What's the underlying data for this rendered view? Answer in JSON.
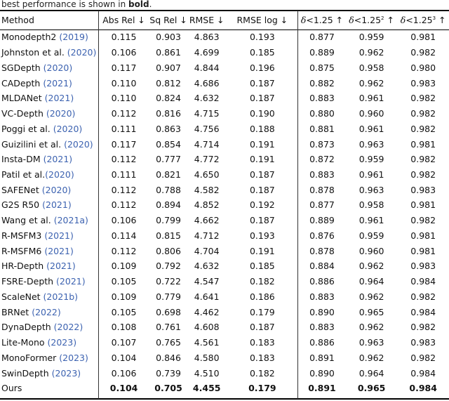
{
  "caption": {
    "text": "best performance is shown in ",
    "bold": "bold",
    "end": "."
  },
  "header": {
    "method": "Method",
    "cols": [
      "Abs Rel ↓",
      "Sq Rel ↓",
      "RMSE ↓",
      "RMSE log ↓"
    ],
    "delta": [
      {
        "base": "<1.25",
        "sup": "",
        "arrow": " ↑"
      },
      {
        "base": "<1.25",
        "sup": "2",
        "arrow": " ↑"
      },
      {
        "base": "<1.25",
        "sup": "3",
        "arrow": " ↑"
      }
    ],
    "delta_symbol": "δ"
  },
  "rows": [
    {
      "name": "Monodepth2 ",
      "year": "(2019)",
      "v": [
        "0.115",
        "0.903",
        "4.863",
        "0.193",
        "0.877",
        "0.959",
        "0.981"
      ]
    },
    {
      "name": "Johnston et al. ",
      "year": "(2020)",
      "v": [
        "0.106",
        "0.861",
        "4.699",
        "0.185",
        "0.889",
        "0.962",
        "0.982"
      ]
    },
    {
      "name": "SGDepth ",
      "year": "(2020)",
      "v": [
        "0.117",
        "0.907",
        "4.844",
        "0.196",
        "0.875",
        "0.958",
        "0.980"
      ]
    },
    {
      "name": "CADepth ",
      "year": "(2021)",
      "v": [
        "0.110",
        "0.812",
        "4.686",
        "0.187",
        "0.882",
        "0.962",
        "0.983"
      ]
    },
    {
      "name": "MLDANet ",
      "year": "(2021)",
      "v": [
        "0.110",
        "0.824",
        "4.632",
        "0.187",
        "0.883",
        "0.961",
        "0.982"
      ]
    },
    {
      "name": "VC-Depth ",
      "year": "(2020)",
      "v": [
        "0.112",
        "0.816",
        "4.715",
        "0.190",
        "0.880",
        "0.960",
        "0.982"
      ]
    },
    {
      "name": "Poggi et al. ",
      "year": "(2020)",
      "v": [
        "0.111",
        "0.863",
        "4.756",
        "0.188",
        "0.881",
        "0.961",
        "0.982"
      ]
    },
    {
      "name": "Guizilini et al. ",
      "year": "(2020)",
      "v": [
        "0.117",
        "0.854",
        "4.714",
        "0.191",
        "0.873",
        "0.963",
        "0.981"
      ]
    },
    {
      "name": "Insta-DM ",
      "year": "(2021)",
      "v": [
        "0.112",
        "0.777",
        "4.772",
        "0.191",
        "0.872",
        "0.959",
        "0.982"
      ]
    },
    {
      "name": "Patil et al.",
      "year": "(2020)",
      "v": [
        "0.111",
        "0.821",
        "4.650",
        "0.187",
        "0.883",
        "0.961",
        "0.982"
      ]
    },
    {
      "name": "SAFENet ",
      "year": "(2020)",
      "v": [
        "0.112",
        "0.788",
        "4.582",
        "0.187",
        "0.878",
        "0.963",
        "0.983"
      ]
    },
    {
      "name": "G2S R50 ",
      "year": "(2021)",
      "v": [
        "0.112",
        "0.894",
        "4.852",
        "0.192",
        "0.877",
        "0.958",
        "0.981"
      ]
    },
    {
      "name": "Wang et al. ",
      "year": "(2021a)",
      "v": [
        "0.106",
        "0.799",
        "4.662",
        "0.187",
        "0.889",
        "0.961",
        "0.982"
      ]
    },
    {
      "name": "R-MSFM3 ",
      "year": "(2021)",
      "v": [
        "0.114",
        "0.815",
        "4.712",
        "0.193",
        "0.876",
        "0.959",
        "0.981"
      ]
    },
    {
      "name": "R-MSFM6 ",
      "year": "(2021)",
      "v": [
        "0.112",
        "0.806",
        "4.704",
        "0.191",
        "0.878",
        "0.960",
        "0.981"
      ]
    },
    {
      "name": "HR-Depth ",
      "year": "(2021)",
      "v": [
        "0.109",
        "0.792",
        "4.632",
        "0.185",
        "0.884",
        "0.962",
        "0.983"
      ]
    },
    {
      "name": "FSRE-Depth ",
      "year": "(2021)",
      "v": [
        "0.105",
        "0.722",
        "4.547",
        "0.182",
        "0.886",
        "0.964",
        "0.984"
      ]
    },
    {
      "name": "ScaleNet ",
      "year": "(2021b)",
      "v": [
        "0.109",
        "0.779",
        "4.641",
        "0.186",
        "0.883",
        "0.962",
        "0.982"
      ]
    },
    {
      "name": "BRNet ",
      "year": "(2022)",
      "v": [
        "0.105",
        "0.698",
        "4.462",
        "0.179",
        "0.890",
        "0.965",
        "0.984"
      ]
    },
    {
      "name": "DynaDepth ",
      "year": "(2022)",
      "v": [
        "0.108",
        "0.761",
        "4.608",
        "0.187",
        "0.883",
        "0.962",
        "0.982"
      ]
    },
    {
      "name": "Lite-Mono ",
      "year": "(2023)",
      "v": [
        "0.107",
        "0.765",
        "4.561",
        "0.183",
        "0.886",
        "0.963",
        "0.983"
      ]
    },
    {
      "name": "MonoFormer ",
      "year": "(2023)",
      "v": [
        "0.104",
        "0.846",
        "4.580",
        "0.183",
        "0.891",
        "0.962",
        "0.982"
      ]
    },
    {
      "name": "SwinDepth ",
      "year": "(2023)",
      "v": [
        "0.106",
        "0.739",
        "4.510",
        "0.182",
        "0.890",
        "0.964",
        "0.984"
      ]
    },
    {
      "name": "Ours",
      "year": "",
      "v": [
        "0.104",
        "0.705",
        "4.455",
        "0.179",
        "0.891",
        "0.965",
        "0.984"
      ],
      "best": true
    }
  ],
  "colors": {
    "citation": "#3c62b0"
  }
}
